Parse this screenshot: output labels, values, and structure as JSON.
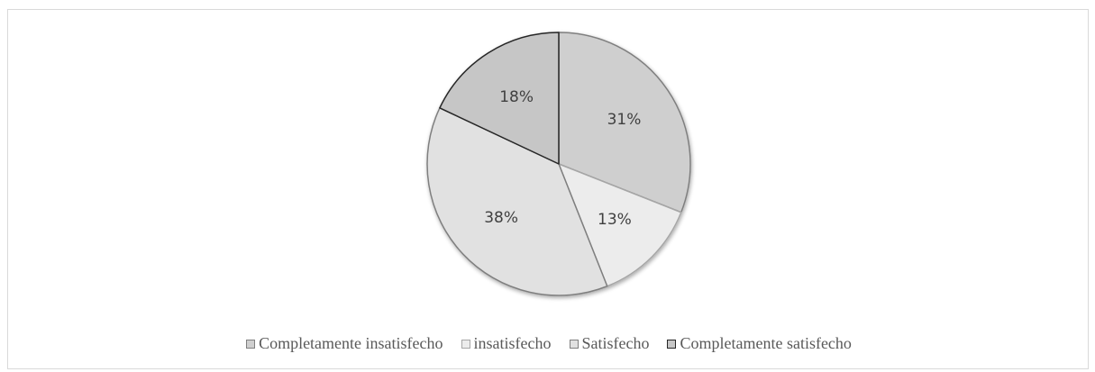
{
  "chart_data": {
    "type": "pie",
    "title": "",
    "categories": [
      "Completamente insatisfecho",
      "insatisfecho",
      "Satisfecho",
      "Completamente satisfecho"
    ],
    "values": [
      31,
      13,
      38,
      18
    ],
    "data_labels": [
      "31%",
      "13%",
      "38%",
      "18%"
    ],
    "colors": [
      "#cfcfcf",
      "#ececec",
      "#e1e1e1",
      "#c6c6c6"
    ],
    "edge_colors": [
      "#7f7f7f",
      "#a6a6a6",
      "#7f7f7f",
      "#262626"
    ],
    "start_angle_deg": 0,
    "direction": "clockwise",
    "legend_position": "bottom"
  }
}
